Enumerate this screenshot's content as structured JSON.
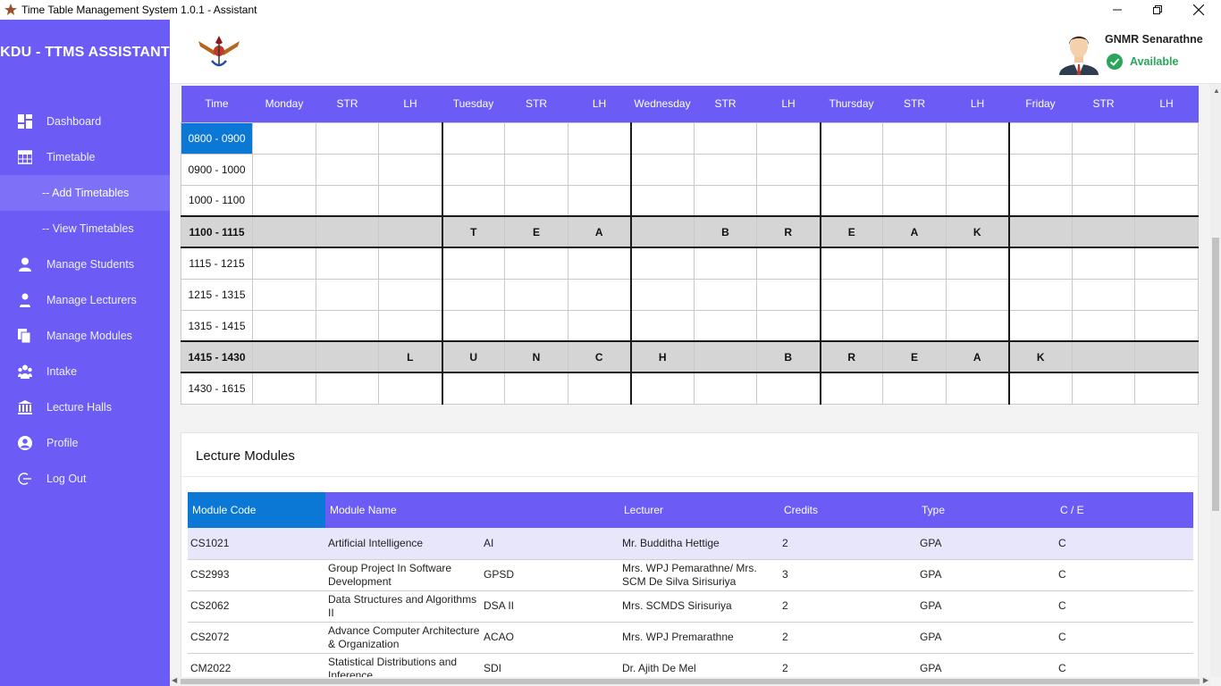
{
  "window": {
    "title": "Time Table Management System 1.0.1 - Assistant"
  },
  "sidebar": {
    "brand": "KDU - TTMS ASSISTANT",
    "items": [
      {
        "label": "Dashboard",
        "icon": "dashboard-icon"
      },
      {
        "label": "Timetable",
        "icon": "table-icon"
      },
      {
        "label": "-- Add Timetables",
        "icon": ""
      },
      {
        "label": "-- View Timetables",
        "icon": ""
      },
      {
        "label": "Manage Students",
        "icon": "student-icon"
      },
      {
        "label": "Manage Lecturers",
        "icon": "lecturer-icon"
      },
      {
        "label": "Manage Modules",
        "icon": "modules-icon"
      },
      {
        "label": "Intake",
        "icon": "group-icon"
      },
      {
        "label": "Lecture Halls",
        "icon": "building-icon"
      },
      {
        "label": "Profile",
        "icon": "profile-icon"
      },
      {
        "label": "Log Out",
        "icon": "logout-icon"
      }
    ],
    "active_index": 2
  },
  "header": {
    "user_name": "GNMR Senarathne",
    "status": "Available",
    "status_color": "#2aa65a"
  },
  "timetable": {
    "columns": [
      "Time",
      "Monday",
      "STR",
      "LH",
      "Tuesday",
      "STR",
      "LH",
      "Wednesday",
      "STR",
      "LH",
      "Thursday",
      "STR",
      "LH",
      "Friday",
      "STR",
      "LH"
    ],
    "rows": [
      {
        "time": "0800 - 0900",
        "cells": [
          "",
          "",
          "",
          "",
          "",
          "",
          "",
          "",
          "",
          "",
          "",
          "",
          "",
          "",
          ""
        ]
      },
      {
        "time": "0900 - 1000",
        "cells": [
          "",
          "",
          "",
          "",
          "",
          "",
          "",
          "",
          "",
          "",
          "",
          "",
          "",
          "",
          ""
        ]
      },
      {
        "time": "1000 - 1100",
        "cells": [
          "",
          "",
          "",
          "",
          "",
          "",
          "",
          "",
          "",
          "",
          "",
          "",
          "",
          "",
          ""
        ]
      },
      {
        "time": "1100 - 1115",
        "break": true,
        "cells": [
          "",
          "",
          "",
          "T",
          "E",
          "A",
          "",
          "B",
          "R",
          "E",
          "A",
          "K",
          "",
          "",
          ""
        ]
      },
      {
        "time": "1115 - 1215",
        "cells": [
          "",
          "",
          "",
          "",
          "",
          "",
          "",
          "",
          "",
          "",
          "",
          "",
          "",
          "",
          ""
        ]
      },
      {
        "time": "1215 - 1315",
        "cells": [
          "",
          "",
          "",
          "",
          "",
          "",
          "",
          "",
          "",
          "",
          "",
          "",
          "",
          "",
          ""
        ]
      },
      {
        "time": "1315 - 1415",
        "cells": [
          "",
          "",
          "",
          "",
          "",
          "",
          "",
          "",
          "",
          "",
          "",
          "",
          "",
          "",
          ""
        ]
      },
      {
        "time": "1415 - 1430",
        "break": true,
        "cells": [
          "",
          "",
          "L",
          "U",
          "N",
          "C",
          "H",
          "",
          "B",
          "R",
          "E",
          "A",
          "K",
          "",
          ""
        ]
      },
      {
        "time": "1430 - 1615",
        "cells": [
          "",
          "",
          "",
          "",
          "",
          "",
          "",
          "",
          "",
          "",
          "",
          "",
          "",
          "",
          ""
        ]
      }
    ],
    "selected_time_index": 0
  },
  "modules": {
    "title": "Lecture Modules",
    "columns": [
      "Module Code",
      "Module Name",
      "",
      "Lecturer",
      "Credits",
      "Type",
      "C / E"
    ],
    "rows": [
      {
        "code": "CS1021",
        "name": "Artificial Intelligence",
        "abbr": "AI",
        "lecturer": "Mr. Budditha Hettige",
        "credits": "2",
        "type": "GPA",
        "ce": "C"
      },
      {
        "code": "CS2993",
        "name": "Group Project In Software Development",
        "abbr": "GPSD",
        "lecturer": "Mrs. WPJ Pemarathne/ Mrs. SCM De Silva Sirisuriya",
        "credits": "3",
        "type": "GPA",
        "ce": "C"
      },
      {
        "code": "CS2062",
        "name": "Data Structures and Algorithms II",
        "abbr": "DSA II",
        "lecturer": "Mrs. SCMDS Sirisuriya",
        "credits": "2",
        "type": "GPA",
        "ce": "C"
      },
      {
        "code": "CS2072",
        "name": "Advance Computer Architecture & Organization",
        "abbr": "ACAO",
        "lecturer": "Mrs. WPJ Premarathne",
        "credits": "2",
        "type": "GPA",
        "ce": "C"
      },
      {
        "code": "CM2022",
        "name": "Statistical Distributions and Inference",
        "abbr": "SDI",
        "lecturer": "Dr. Ajith De Mel",
        "credits": "2",
        "type": "GPA",
        "ce": "C"
      }
    ]
  }
}
